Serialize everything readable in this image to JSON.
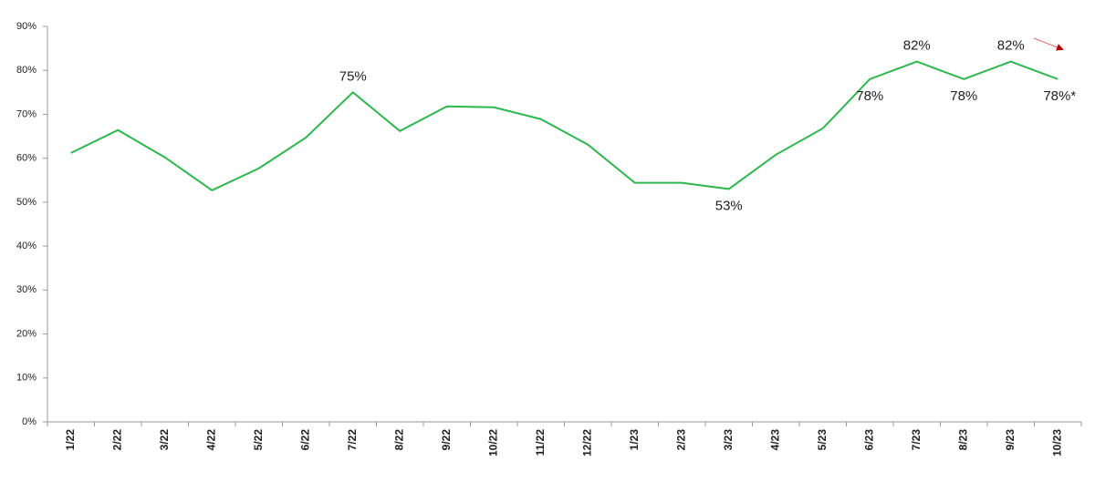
{
  "chart_data": {
    "type": "line",
    "categories": [
      "1/22",
      "2/22",
      "3/22",
      "4/22",
      "5/22",
      "6/22",
      "7/22",
      "8/22",
      "9/22",
      "10/22",
      "11/22",
      "12/22",
      "1/23",
      "2/23",
      "3/23",
      "4/23",
      "5/23",
      "6/23",
      "7/23",
      "8/23",
      "9/23",
      "10/23"
    ],
    "series": [
      {
        "color": "#2db84d",
        "values": [
          61.2,
          66.4,
          60.2,
          52.7,
          57.7,
          64.7,
          75,
          66.2,
          71.8,
          71.6,
          68.9,
          63.1,
          54.4,
          54.4,
          53,
          60.8,
          66.8,
          78,
          82,
          78,
          82,
          78
        ],
        "value_labels": [
          null,
          null,
          null,
          null,
          null,
          null,
          "75%",
          null,
          null,
          null,
          null,
          null,
          null,
          null,
          "53%",
          null,
          null,
          "78%",
          "82%",
          "78%",
          "82%",
          "78%*"
        ]
      }
    ],
    "ylim": [
      0,
      90
    ],
    "yticks": [
      {
        "value": 0,
        "label": "0%"
      },
      {
        "value": 10,
        "label": "10%"
      },
      {
        "value": 20,
        "label": "20%"
      },
      {
        "value": 30,
        "label": "30%"
      },
      {
        "value": 40,
        "label": "40%"
      },
      {
        "value": 50,
        "label": "50%"
      },
      {
        "value": 60,
        "label": "60%"
      },
      {
        "value": 70,
        "label": "70%"
      },
      {
        "value": 80,
        "label": "80%"
      },
      {
        "value": 90,
        "label": "90%"
      }
    ],
    "grid": false
  }
}
